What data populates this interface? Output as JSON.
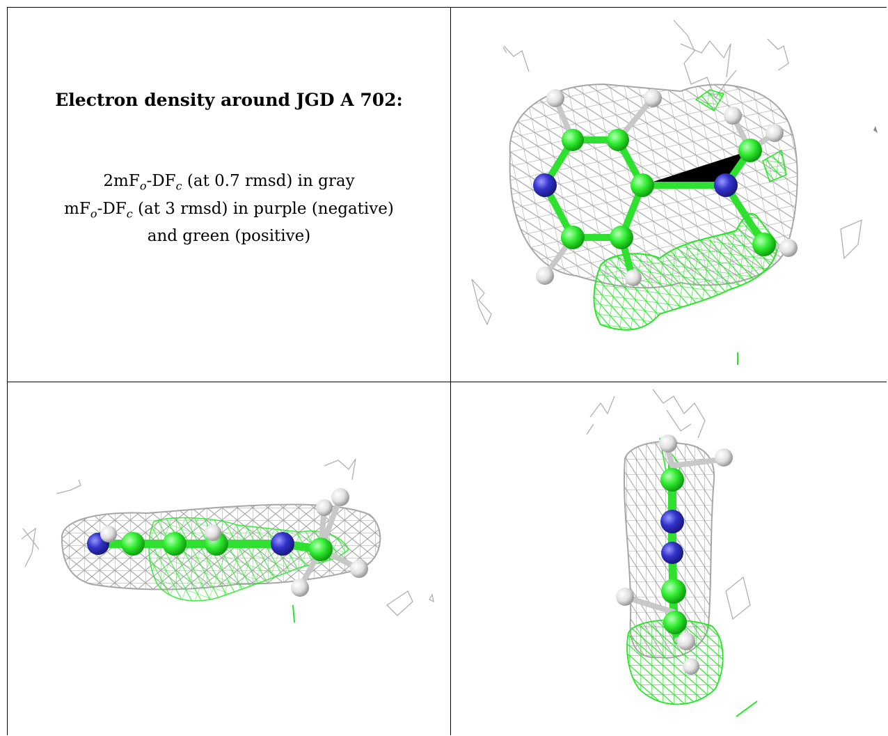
{
  "caption": {
    "title": "Electron density around JGD A 702:",
    "line1": {
      "prefix": "2mF",
      "sub1": "o",
      "mid": "-DF",
      "sub2": "c",
      "suffix": " (at 0.7 rmsd) in gray"
    },
    "line2": {
      "prefix": "mF",
      "sub1": "o",
      "mid": "-DF",
      "sub2": "c",
      "suffix": " (at 3 rmsd) in purple (negative)"
    },
    "line3": "and green (positive)"
  },
  "colors": {
    "mesh_gray": "#a0a0a0",
    "mesh_green": "#1aee1a",
    "carbon": "#33ee33",
    "nitrogen": "#3333cc",
    "hydrogen": "#e6e6e6"
  },
  "views": [
    {
      "name": "top-view"
    },
    {
      "name": "side-view"
    },
    {
      "name": "end-view"
    }
  ]
}
